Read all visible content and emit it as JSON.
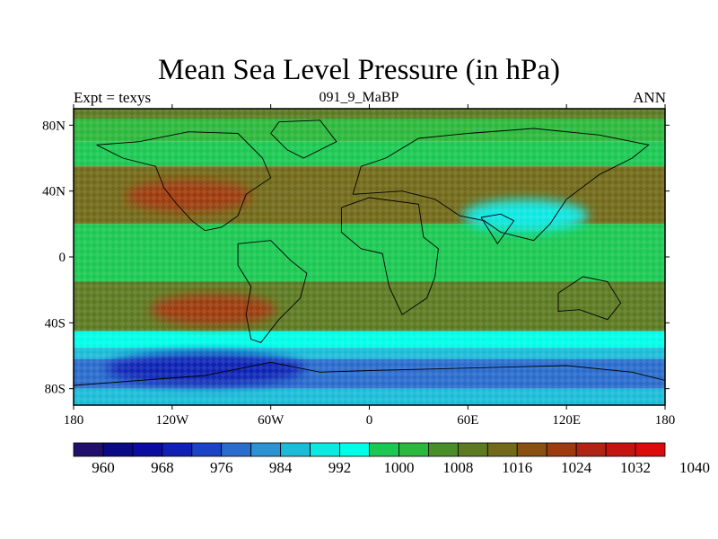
{
  "title": "Mean Sea Level Pressure (in hPa)",
  "left_subtitle": "Expt = texys",
  "center_subtitle": "091_9_MaBP",
  "right_subtitle": "ANN",
  "map": {
    "lon_range": [
      -180,
      180
    ],
    "lat_range": [
      -90,
      90
    ],
    "lon_ticks": [
      {
        "value": -180,
        "label": "180"
      },
      {
        "value": -120,
        "label": "120W"
      },
      {
        "value": -60,
        "label": "60W"
      },
      {
        "value": 0,
        "label": "0"
      },
      {
        "value": 60,
        "label": "60E"
      },
      {
        "value": 120,
        "label": "120E"
      },
      {
        "value": 180,
        "label": "180"
      }
    ],
    "lat_ticks": [
      {
        "value": 80,
        "label": "80N"
      },
      {
        "value": 40,
        "label": "40N"
      },
      {
        "value": 0,
        "label": "0"
      },
      {
        "value": -40,
        "label": "40S"
      },
      {
        "value": -80,
        "label": "80S"
      }
    ],
    "pressure_bands_hpa": [
      {
        "lat_from": 90,
        "lat_to": 84,
        "value": 1010
      },
      {
        "lat_from": 84,
        "lat_to": 70,
        "value": 1000
      },
      {
        "lat_from": 70,
        "lat_to": 55,
        "value": 997
      },
      {
        "lat_from": 55,
        "lat_to": 20,
        "value": 1012
      },
      {
        "lat_from": 20,
        "lat_to": -15,
        "value": 998
      },
      {
        "lat_from": -15,
        "lat_to": -45,
        "value": 1011
      },
      {
        "lat_from": -45,
        "lat_to": -55,
        "value": 995
      },
      {
        "lat_from": -55,
        "lat_to": -62,
        "value": 985
      },
      {
        "lat_from": -62,
        "lat_to": -80,
        "value": 976
      },
      {
        "lat_from": -80,
        "lat_to": -90,
        "value": 987
      }
    ],
    "pressure_cells_hpa": [
      {
        "name": "north-pacific-high",
        "lon": -110,
        "lat": 37,
        "value": 1022
      },
      {
        "name": "south-pacific-high",
        "lon": -95,
        "lat": -32,
        "value": 1020
      },
      {
        "name": "north-atlantic-high",
        "lon": -30,
        "lat": 35,
        "value": 1014
      },
      {
        "name": "asian-low",
        "lon": 95,
        "lat": 25,
        "value": 990
      },
      {
        "name": "southern-ocean-low",
        "lon": -100,
        "lat": -68,
        "value": 968
      }
    ],
    "coastlines": [
      {
        "name": "north-america",
        "points": [
          [
            -166,
            68
          ],
          [
            -140,
            70
          ],
          [
            -110,
            76
          ],
          [
            -80,
            75
          ],
          [
            -65,
            60
          ],
          [
            -60,
            48
          ],
          [
            -75,
            38
          ],
          [
            -80,
            25
          ],
          [
            -90,
            18
          ],
          [
            -100,
            16
          ],
          [
            -108,
            22
          ],
          [
            -118,
            33
          ],
          [
            -125,
            42
          ],
          [
            -130,
            55
          ],
          [
            -150,
            60
          ],
          [
            -166,
            68
          ]
        ]
      },
      {
        "name": "greenland",
        "points": [
          [
            -55,
            82
          ],
          [
            -30,
            83
          ],
          [
            -20,
            70
          ],
          [
            -40,
            60
          ],
          [
            -50,
            65
          ],
          [
            -60,
            75
          ],
          [
            -55,
            82
          ]
        ]
      },
      {
        "name": "south-america",
        "points": [
          [
            -80,
            8
          ],
          [
            -60,
            10
          ],
          [
            -48,
            -2
          ],
          [
            -38,
            -10
          ],
          [
            -42,
            -25
          ],
          [
            -55,
            -38
          ],
          [
            -66,
            -52
          ],
          [
            -72,
            -50
          ],
          [
            -75,
            -35
          ],
          [
            -72,
            -18
          ],
          [
            -80,
            -5
          ],
          [
            -80,
            8
          ]
        ]
      },
      {
        "name": "africa",
        "points": [
          [
            -17,
            30
          ],
          [
            0,
            36
          ],
          [
            30,
            32
          ],
          [
            33,
            12
          ],
          [
            42,
            5
          ],
          [
            40,
            -12
          ],
          [
            35,
            -25
          ],
          [
            20,
            -35
          ],
          [
            12,
            -18
          ],
          [
            8,
            2
          ],
          [
            -5,
            5
          ],
          [
            -17,
            15
          ],
          [
            -17,
            30
          ]
        ]
      },
      {
        "name": "eurasia",
        "points": [
          [
            -10,
            38
          ],
          [
            -5,
            55
          ],
          [
            10,
            60
          ],
          [
            30,
            72
          ],
          [
            60,
            75
          ],
          [
            100,
            78
          ],
          [
            140,
            74
          ],
          [
            170,
            68
          ],
          [
            160,
            60
          ],
          [
            140,
            50
          ],
          [
            120,
            35
          ],
          [
            110,
            20
          ],
          [
            100,
            10
          ],
          [
            80,
            15
          ],
          [
            70,
            22
          ],
          [
            55,
            25
          ],
          [
            40,
            35
          ],
          [
            20,
            40
          ],
          [
            -10,
            38
          ]
        ]
      },
      {
        "name": "india",
        "points": [
          [
            68,
            24
          ],
          [
            78,
            8
          ],
          [
            88,
            22
          ],
          [
            80,
            26
          ],
          [
            68,
            24
          ]
        ]
      },
      {
        "name": "australia",
        "points": [
          [
            115,
            -22
          ],
          [
            130,
            -12
          ],
          [
            145,
            -15
          ],
          [
            153,
            -28
          ],
          [
            145,
            -38
          ],
          [
            128,
            -32
          ],
          [
            115,
            -33
          ],
          [
            115,
            -22
          ]
        ]
      },
      {
        "name": "antarctica",
        "points": [
          [
            -180,
            -78
          ],
          [
            -140,
            -75
          ],
          [
            -100,
            -72
          ],
          [
            -60,
            -64
          ],
          [
            -30,
            -70
          ],
          [
            0,
            -69
          ],
          [
            40,
            -68
          ],
          [
            80,
            -67
          ],
          [
            120,
            -66
          ],
          [
            160,
            -70
          ],
          [
            180,
            -75
          ]
        ]
      }
    ]
  },
  "colorbar": {
    "colors": [
      "#20106b",
      "#0a0a85",
      "#0c0ca0",
      "#1020b4",
      "#1a44c4",
      "#2a6ccc",
      "#2c92d2",
      "#1cbcd8",
      "#0ce8e2",
      "#00ffe8",
      "#1cc852",
      "#2cb83c",
      "#4a8e2a",
      "#5c7a22",
      "#726a1a",
      "#8a5012",
      "#9e3a10",
      "#b02414",
      "#c41410",
      "#dc0a0a"
    ],
    "labels": [
      "960",
      "968",
      "976",
      "984",
      "992",
      "1000",
      "1008",
      "1016",
      "1024",
      "1032",
      "1040"
    ]
  }
}
